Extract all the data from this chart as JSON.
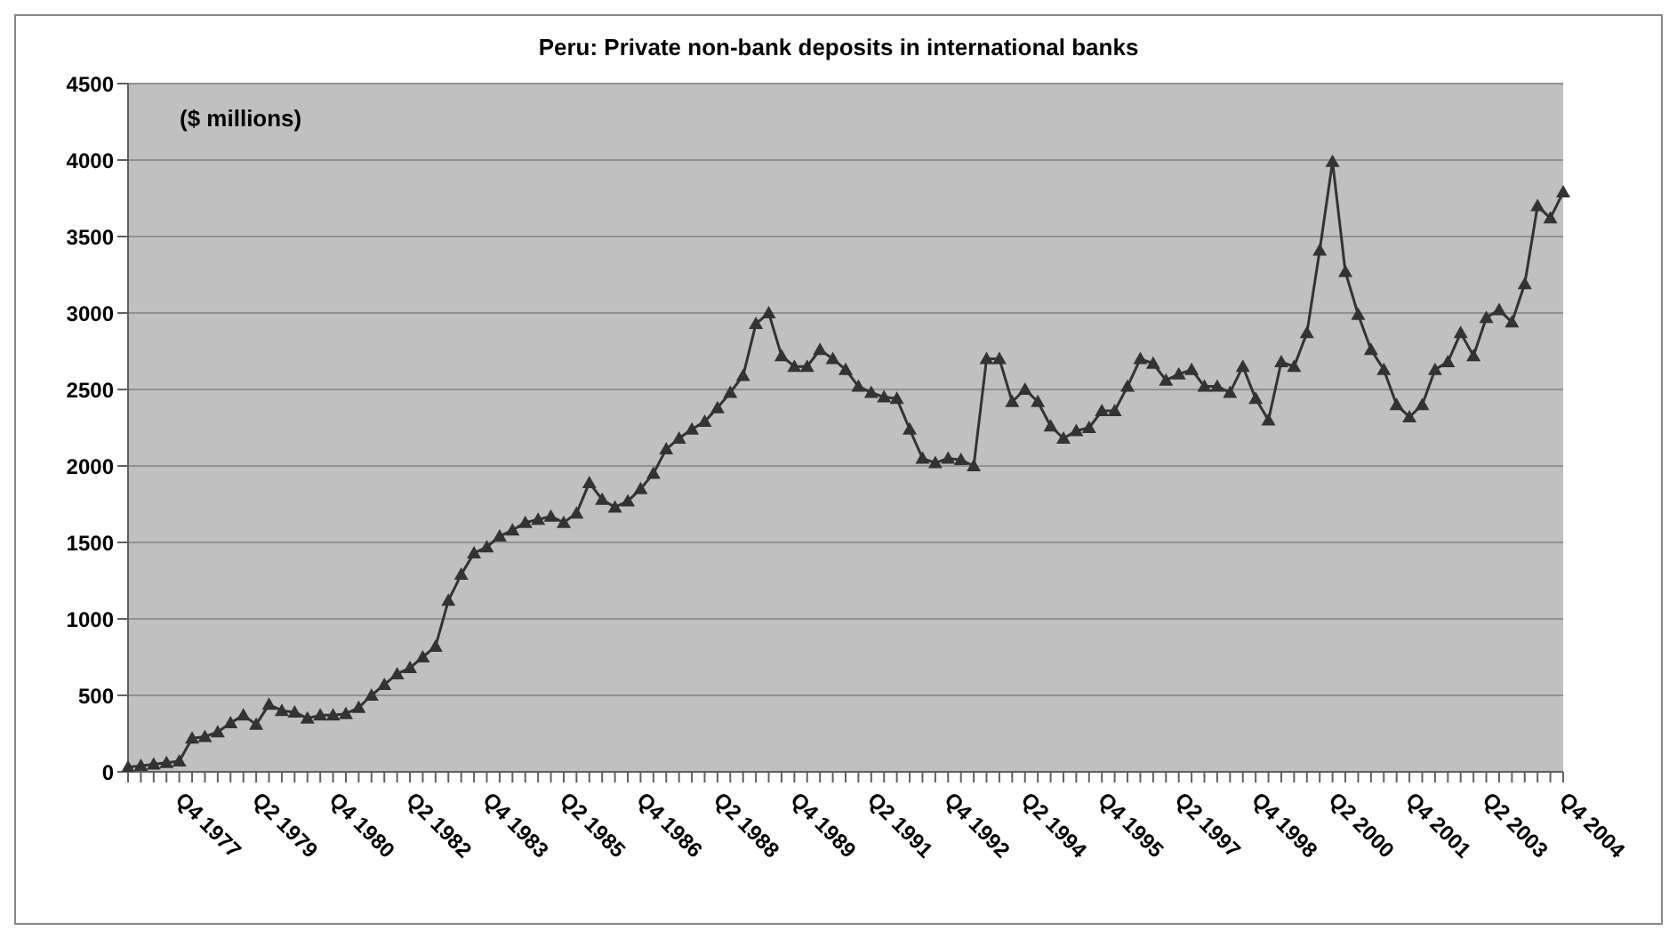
{
  "chart_data": {
    "type": "line",
    "title": "Peru: Private non-bank deposits in international banks",
    "annotations": [
      "($ millions)"
    ],
    "categories": [
      null,
      null,
      null,
      null,
      "Q4 1977",
      null,
      null,
      null,
      null,
      null,
      "Q2 1979",
      null,
      null,
      null,
      null,
      null,
      "Q4 1980",
      null,
      null,
      null,
      null,
      null,
      "Q2 1982",
      null,
      null,
      null,
      null,
      null,
      "Q4 1983",
      null,
      null,
      null,
      null,
      null,
      "Q2 1985",
      null,
      null,
      null,
      null,
      null,
      "Q4 1986",
      null,
      null,
      null,
      null,
      null,
      "Q2 1988",
      null,
      null,
      null,
      null,
      null,
      "Q4 1989",
      null,
      null,
      null,
      null,
      null,
      "Q2 1991",
      null,
      null,
      null,
      null,
      null,
      "Q4 1992",
      null,
      null,
      null,
      null,
      null,
      "Q2 1994",
      null,
      null,
      null,
      null,
      null,
      "Q4 1995",
      null,
      null,
      null,
      null,
      null,
      "Q2 1997",
      null,
      null,
      null,
      null,
      null,
      "Q4 1998",
      null,
      null,
      null,
      null,
      null,
      "Q2 2000",
      null,
      null,
      null,
      null,
      null,
      "Q4 2001",
      null,
      null,
      null,
      null,
      null,
      "Q2 2003",
      null,
      null,
      null,
      null,
      null,
      "Q4 2004"
    ],
    "series": [
      {
        "color": "#333333",
        "values": [
          30,
          40,
          50,
          60,
          70,
          220,
          230,
          260,
          320,
          370,
          310,
          440,
          400,
          390,
          350,
          370,
          370,
          380,
          420,
          500,
          570,
          640,
          680,
          750,
          820,
          1120,
          1290,
          1430,
          1470,
          1540,
          1580,
          1630,
          1650,
          1670,
          1630,
          1690,
          1890,
          1780,
          1730,
          1770,
          1850,
          1950,
          2110,
          2180,
          2240,
          2290,
          2380,
          2480,
          2590,
          2930,
          3000,
          2720,
          2650,
          2650,
          2760,
          2700,
          2630,
          2520,
          2480,
          2450,
          2440,
          2240,
          2050,
          2020,
          2050,
          2040,
          2000,
          2700,
          2700,
          2420,
          2500,
          2420,
          2260,
          2180,
          2230,
          2250,
          2360,
          2360,
          2520,
          2700,
          2670,
          2560,
          2600,
          2630,
          2520,
          2520,
          2480,
          2650,
          2440,
          2300,
          2680,
          2650,
          2870,
          3410,
          3990,
          3270,
          2990,
          2760,
          2630,
          2400,
          2320,
          2400,
          2630,
          2680,
          2870,
          2720,
          2970,
          3020,
          2940,
          3190,
          3700,
          3620,
          3790
        ]
      }
    ],
    "ylim": [
      0,
      4500
    ],
    "yticks": [
      0,
      500,
      1000,
      1500,
      2000,
      2500,
      3000,
      3500,
      4000,
      4500
    ],
    "grid": "y",
    "marker": "triangle",
    "legend": false
  }
}
